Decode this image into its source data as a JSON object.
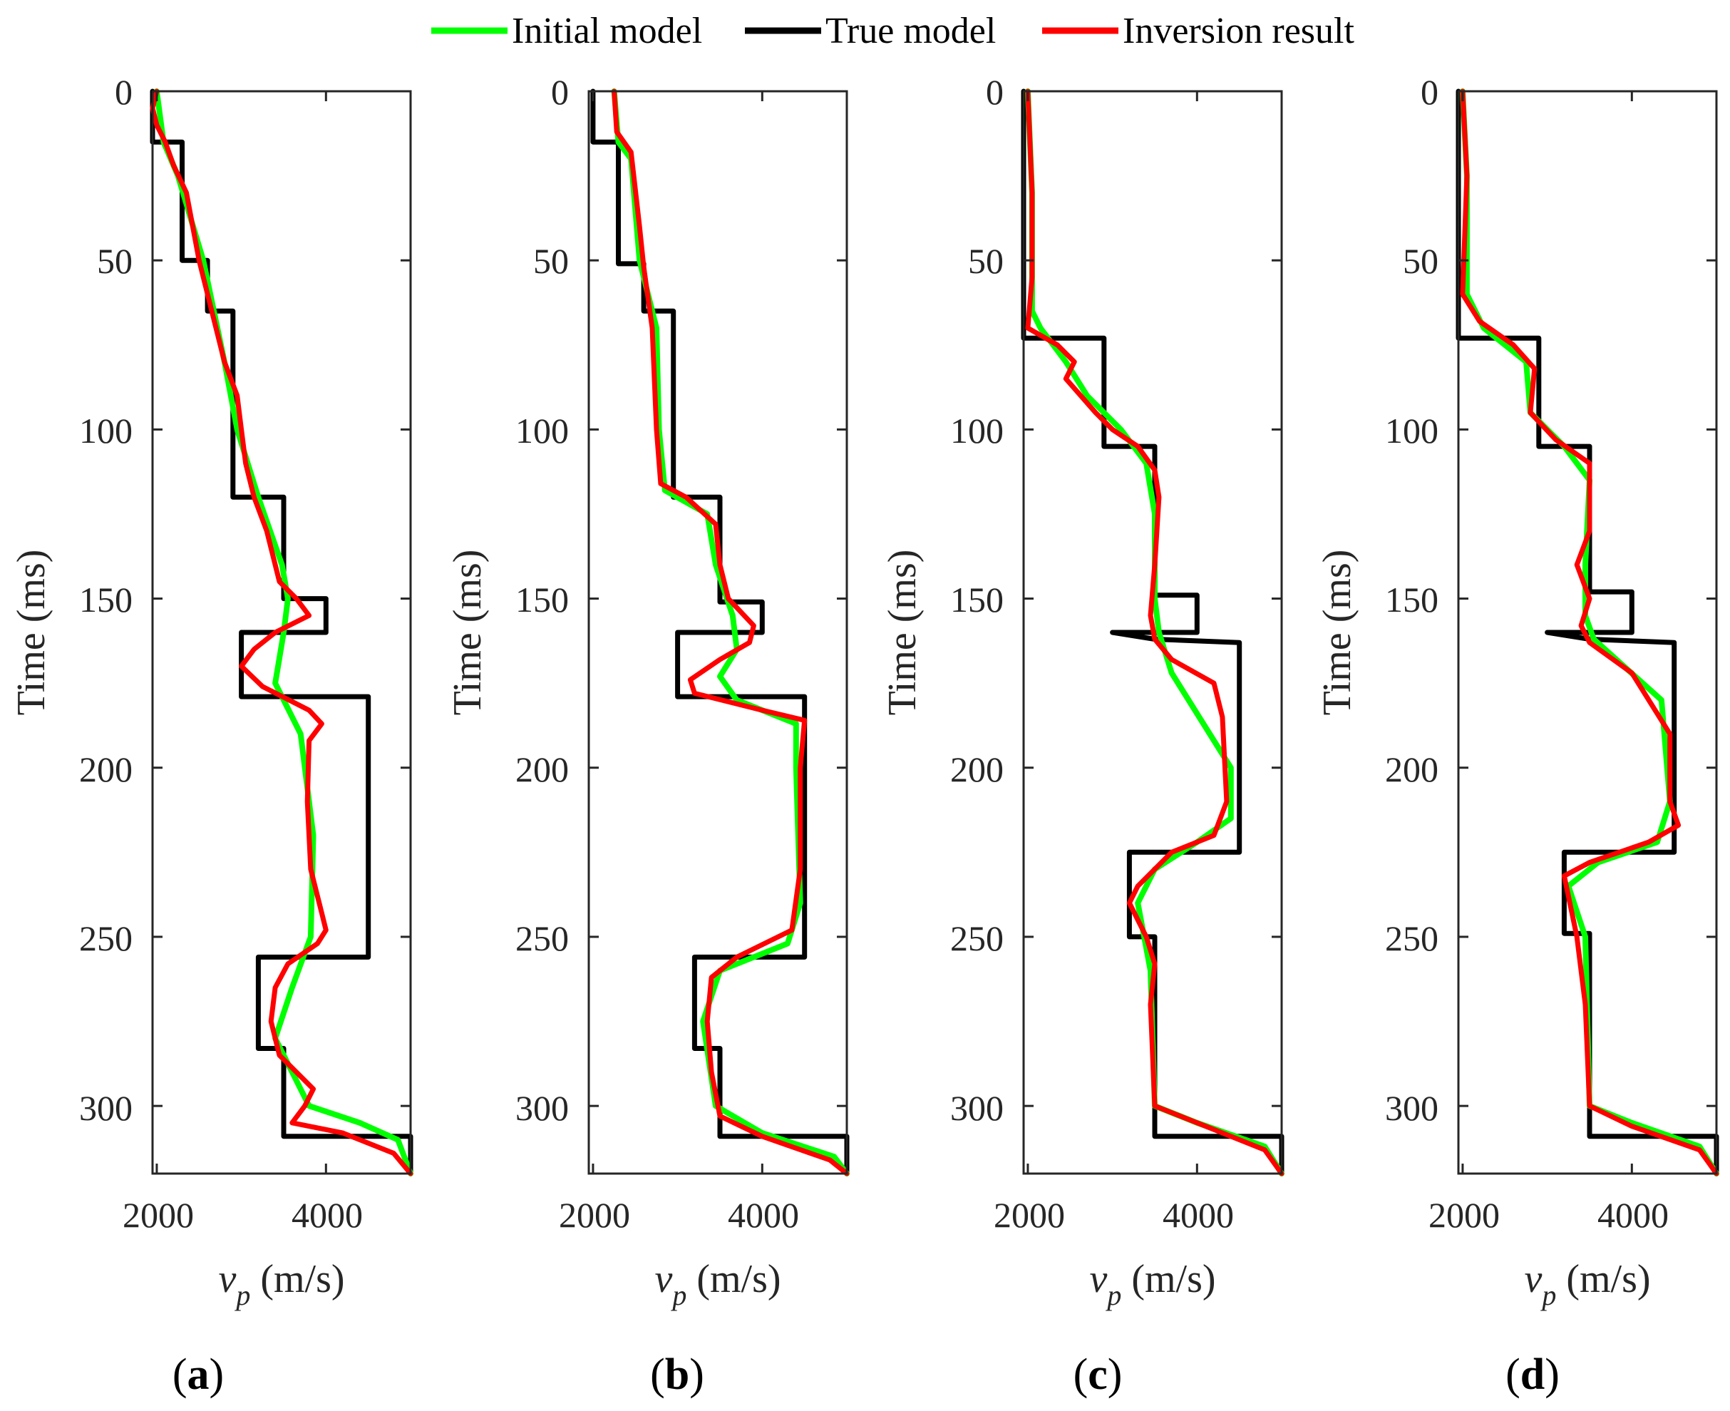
{
  "chart_data": {
    "type": "line",
    "legend_position": "top-center",
    "legend": [
      {
        "key": "initial",
        "label": "Initial model",
        "color": "#00ff00"
      },
      {
        "key": "true",
        "label": "True model",
        "color": "#000000"
      },
      {
        "key": "inversion",
        "label": "Inversion result",
        "color": "#ff0000"
      }
    ],
    "ylabel": "Time (ms)",
    "xlabel_symbol": "v",
    "xlabel_subscript": "p",
    "xlabel_unit": "(m/s)",
    "xlim": [
      1950,
      5000
    ],
    "ylim": [
      0,
      320
    ],
    "x_ticks": [
      2000,
      4000
    ],
    "x_tick_labels": [
      "2000",
      "4000"
    ],
    "y_ticks": [
      0,
      50,
      100,
      150,
      200,
      250,
      300
    ],
    "y_tick_labels": [
      "0",
      "50",
      "100",
      "150",
      "200",
      "250",
      "300"
    ],
    "panels": [
      {
        "label": "a",
        "true": [
          [
            0,
            1950
          ],
          [
            15,
            1950
          ],
          [
            15,
            2300
          ],
          [
            50,
            2300
          ],
          [
            50,
            2600
          ],
          [
            65,
            2600
          ],
          [
            65,
            2900
          ],
          [
            120,
            2900
          ],
          [
            120,
            3500
          ],
          [
            150,
            3500
          ],
          [
            150,
            4000
          ],
          [
            160,
            4000
          ],
          [
            160,
            3000
          ],
          [
            179,
            3000
          ],
          [
            179,
            4500
          ],
          [
            256,
            4500
          ],
          [
            256,
            3200
          ],
          [
            283,
            3200
          ],
          [
            283,
            3500
          ],
          [
            309,
            3500
          ],
          [
            309,
            5000
          ],
          [
            320,
            5000
          ]
        ],
        "initial": [
          [
            0,
            2000
          ],
          [
            15,
            2080
          ],
          [
            25,
            2250
          ],
          [
            50,
            2550
          ],
          [
            80,
            2800
          ],
          [
            100,
            2950
          ],
          [
            120,
            3200
          ],
          [
            140,
            3480
          ],
          [
            150,
            3550
          ],
          [
            160,
            3500
          ],
          [
            175,
            3400
          ],
          [
            190,
            3700
          ],
          [
            220,
            3850
          ],
          [
            250,
            3820
          ],
          [
            265,
            3600
          ],
          [
            280,
            3400
          ],
          [
            300,
            3800
          ],
          [
            305,
            4400
          ],
          [
            310,
            4850
          ],
          [
            320,
            5000
          ]
        ],
        "inversion": [
          [
            0,
            2000
          ],
          [
            5,
            1950
          ],
          [
            10,
            2000
          ],
          [
            15,
            2100
          ],
          [
            22,
            2200
          ],
          [
            30,
            2350
          ],
          [
            50,
            2500
          ],
          [
            65,
            2650
          ],
          [
            80,
            2800
          ],
          [
            90,
            2950
          ],
          [
            100,
            3000
          ],
          [
            110,
            3050
          ],
          [
            120,
            3150
          ],
          [
            130,
            3300
          ],
          [
            145,
            3450
          ],
          [
            150,
            3650
          ],
          [
            155,
            3800
          ],
          [
            160,
            3400
          ],
          [
            165,
            3150
          ],
          [
            170,
            3000
          ],
          [
            176,
            3250
          ],
          [
            183,
            3800
          ],
          [
            187,
            3950
          ],
          [
            192,
            3800
          ],
          [
            210,
            3780
          ],
          [
            230,
            3820
          ],
          [
            243,
            3950
          ],
          [
            248,
            4000
          ],
          [
            252,
            3900
          ],
          [
            258,
            3550
          ],
          [
            265,
            3400
          ],
          [
            275,
            3350
          ],
          [
            285,
            3450
          ],
          [
            295,
            3850
          ],
          [
            300,
            3750
          ],
          [
            305,
            3600
          ],
          [
            308,
            4200
          ],
          [
            314,
            4800
          ],
          [
            320,
            5000
          ]
        ]
      },
      {
        "label": "b",
        "true": [
          [
            0,
            2000
          ],
          [
            15,
            2000
          ],
          [
            15,
            2300
          ],
          [
            51,
            2300
          ],
          [
            51,
            2600
          ],
          [
            65,
            2600
          ],
          [
            65,
            2950
          ],
          [
            120,
            2950
          ],
          [
            120,
            3500
          ],
          [
            151,
            3500
          ],
          [
            151,
            4000
          ],
          [
            160,
            4000
          ],
          [
            160,
            3000
          ],
          [
            179,
            3000
          ],
          [
            179,
            4500
          ],
          [
            256,
            4500
          ],
          [
            256,
            3200
          ],
          [
            283,
            3200
          ],
          [
            283,
            3500
          ],
          [
            309,
            3500
          ],
          [
            309,
            5000
          ],
          [
            320,
            5000
          ]
        ],
        "initial": [
          [
            0,
            2250
          ],
          [
            15,
            2300
          ],
          [
            20,
            2450
          ],
          [
            50,
            2550
          ],
          [
            70,
            2750
          ],
          [
            100,
            2780
          ],
          [
            118,
            2850
          ],
          [
            125,
            3350
          ],
          [
            140,
            3450
          ],
          [
            155,
            3650
          ],
          [
            165,
            3700
          ],
          [
            173,
            3500
          ],
          [
            180,
            3700
          ],
          [
            187,
            4400
          ],
          [
            200,
            4400
          ],
          [
            240,
            4450
          ],
          [
            252,
            4300
          ],
          [
            260,
            3500
          ],
          [
            275,
            3300
          ],
          [
            300,
            3450
          ],
          [
            308,
            4000
          ],
          [
            315,
            4850
          ],
          [
            320,
            5000
          ]
        ],
        "inversion": [
          [
            0,
            2250
          ],
          [
            12,
            2280
          ],
          [
            18,
            2450
          ],
          [
            40,
            2550
          ],
          [
            52,
            2600
          ],
          [
            70,
            2700
          ],
          [
            100,
            2750
          ],
          [
            116,
            2800
          ],
          [
            120,
            3100
          ],
          [
            128,
            3450
          ],
          [
            140,
            3500
          ],
          [
            150,
            3600
          ],
          [
            158,
            3900
          ],
          [
            163,
            3850
          ],
          [
            168,
            3500
          ],
          [
            174,
            3150
          ],
          [
            178,
            3200
          ],
          [
            183,
            4000
          ],
          [
            186,
            4500
          ],
          [
            200,
            4450
          ],
          [
            230,
            4450
          ],
          [
            248,
            4350
          ],
          [
            256,
            3700
          ],
          [
            262,
            3400
          ],
          [
            275,
            3350
          ],
          [
            290,
            3400
          ],
          [
            303,
            3500
          ],
          [
            309,
            4000
          ],
          [
            316,
            4800
          ],
          [
            320,
            5000
          ]
        ]
      },
      {
        "label": "c",
        "true": [
          [
            0,
            1950
          ],
          [
            27,
            1950
          ],
          [
            27,
            1950
          ],
          [
            73,
            1950
          ],
          [
            73,
            2900
          ],
          [
            105,
            2900
          ],
          [
            105,
            3500
          ],
          [
            149,
            3500
          ],
          [
            149,
            4000
          ],
          [
            160,
            4000
          ],
          [
            160,
            3000
          ],
          [
            162,
            3500
          ],
          [
            163,
            4500
          ],
          [
            225,
            4500
          ],
          [
            225,
            3200
          ],
          [
            250,
            3200
          ],
          [
            250,
            3500
          ],
          [
            309,
            3500
          ],
          [
            309,
            5000
          ],
          [
            320,
            5000
          ]
        ],
        "initial": [
          [
            0,
            2000
          ],
          [
            30,
            2050
          ],
          [
            65,
            2050
          ],
          [
            70,
            2150
          ],
          [
            80,
            2450
          ],
          [
            90,
            2700
          ],
          [
            100,
            3100
          ],
          [
            110,
            3400
          ],
          [
            125,
            3500
          ],
          [
            150,
            3500
          ],
          [
            160,
            3550
          ],
          [
            172,
            3700
          ],
          [
            200,
            4400
          ],
          [
            215,
            4400
          ],
          [
            222,
            4000
          ],
          [
            230,
            3500
          ],
          [
            240,
            3300
          ],
          [
            260,
            3450
          ],
          [
            300,
            3500
          ],
          [
            305,
            4000
          ],
          [
            312,
            4800
          ],
          [
            320,
            5000
          ]
        ],
        "inversion": [
          [
            0,
            2000
          ],
          [
            30,
            2050
          ],
          [
            55,
            2050
          ],
          [
            70,
            2000
          ],
          [
            75,
            2350
          ],
          [
            80,
            2550
          ],
          [
            85,
            2450
          ],
          [
            95,
            2800
          ],
          [
            100,
            3000
          ],
          [
            105,
            3300
          ],
          [
            112,
            3500
          ],
          [
            120,
            3550
          ],
          [
            140,
            3500
          ],
          [
            155,
            3450
          ],
          [
            162,
            3500
          ],
          [
            168,
            3700
          ],
          [
            175,
            4200
          ],
          [
            185,
            4300
          ],
          [
            210,
            4350
          ],
          [
            220,
            4200
          ],
          [
            225,
            3700
          ],
          [
            235,
            3300
          ],
          [
            240,
            3200
          ],
          [
            250,
            3400
          ],
          [
            258,
            3500
          ],
          [
            270,
            3450
          ],
          [
            300,
            3500
          ],
          [
            305,
            4000
          ],
          [
            313,
            4800
          ],
          [
            320,
            5000
          ]
        ]
      },
      {
        "label": "d",
        "true": [
          [
            0,
            1950
          ],
          [
            26,
            1950
          ],
          [
            26,
            1950
          ],
          [
            73,
            1950
          ],
          [
            73,
            2900
          ],
          [
            105,
            2900
          ],
          [
            105,
            3500
          ],
          [
            148,
            3500
          ],
          [
            148,
            4000
          ],
          [
            160,
            4000
          ],
          [
            160,
            3000
          ],
          [
            162,
            3500
          ],
          [
            163,
            4500
          ],
          [
            225,
            4500
          ],
          [
            225,
            3200
          ],
          [
            249,
            3200
          ],
          [
            249,
            3500
          ],
          [
            309,
            3500
          ],
          [
            309,
            5000
          ],
          [
            320,
            5000
          ]
        ],
        "initial": [
          [
            0,
            2000
          ],
          [
            25,
            2050
          ],
          [
            60,
            2050
          ],
          [
            70,
            2250
          ],
          [
            80,
            2750
          ],
          [
            95,
            2800
          ],
          [
            105,
            3200
          ],
          [
            115,
            3500
          ],
          [
            140,
            3450
          ],
          [
            155,
            3450
          ],
          [
            162,
            3550
          ],
          [
            180,
            4350
          ],
          [
            210,
            4450
          ],
          [
            222,
            4300
          ],
          [
            228,
            3600
          ],
          [
            235,
            3250
          ],
          [
            250,
            3450
          ],
          [
            300,
            3500
          ],
          [
            305,
            4000
          ],
          [
            312,
            4800
          ],
          [
            320,
            5000
          ]
        ],
        "inversion": [
          [
            0,
            2000
          ],
          [
            25,
            2050
          ],
          [
            60,
            2000
          ],
          [
            68,
            2200
          ],
          [
            75,
            2600
          ],
          [
            82,
            2850
          ],
          [
            95,
            2800
          ],
          [
            103,
            3100
          ],
          [
            110,
            3500
          ],
          [
            130,
            3500
          ],
          [
            140,
            3350
          ],
          [
            150,
            3500
          ],
          [
            158,
            3400
          ],
          [
            163,
            3500
          ],
          [
            172,
            4000
          ],
          [
            190,
            4450
          ],
          [
            210,
            4450
          ],
          [
            217,
            4550
          ],
          [
            222,
            4200
          ],
          [
            228,
            3500
          ],
          [
            232,
            3200
          ],
          [
            250,
            3350
          ],
          [
            270,
            3450
          ],
          [
            300,
            3500
          ],
          [
            306,
            4000
          ],
          [
            313,
            4800
          ],
          [
            320,
            5000
          ]
        ]
      }
    ]
  }
}
